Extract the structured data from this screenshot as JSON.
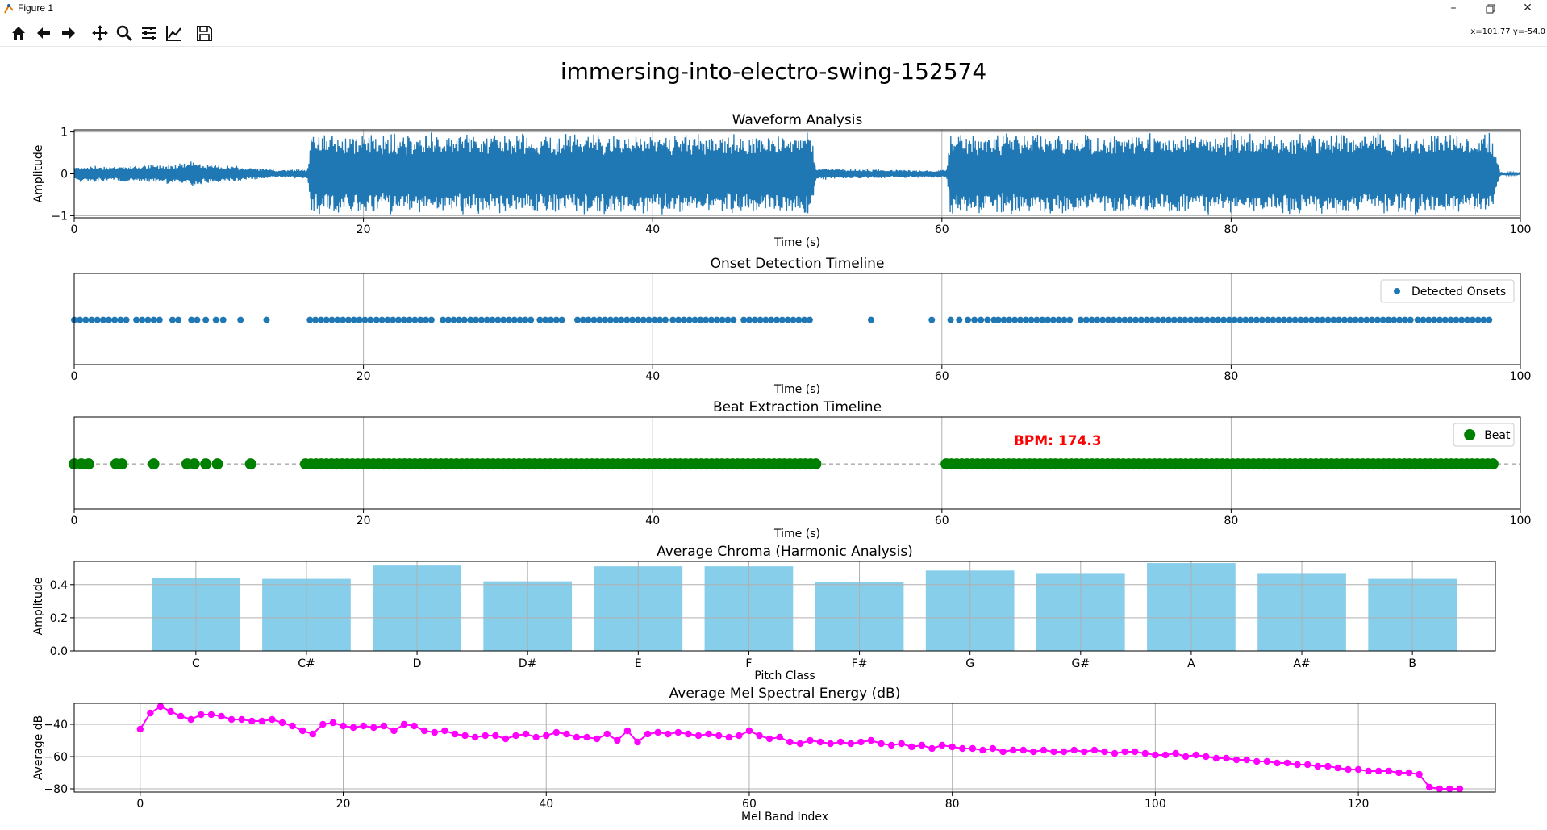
{
  "window": {
    "title": "Figure 1",
    "minimize_icon": "minimize-icon",
    "maximize_icon": "restore-icon",
    "close_icon": "close-icon"
  },
  "toolbar": {
    "buttons": [
      "home-icon",
      "back-arrow-icon",
      "forward-arrow-icon",
      "pan-move-icon",
      "zoom-magnifier-icon",
      "configure-subplots-icon",
      "edit-axis-curve-icon",
      "save-floppy-icon"
    ],
    "coordinates": "x=101.77 y=-54.0"
  },
  "figure": {
    "suptitle": "immersing-into-electro-swing-152574"
  },
  "colors": {
    "waveform": "#1f77b4",
    "onsets": "#1f77b4",
    "beats": "#008000",
    "chroma": "#87ceeb",
    "mel": "#ff00ff",
    "bpm": "#ff0000"
  },
  "chart_data": [
    {
      "type": "line",
      "title": "Waveform Analysis",
      "xlabel": "Time (s)",
      "ylabel": "Amplitude",
      "xlim": [
        0,
        100
      ],
      "ylim": [
        -1.05,
        1.05
      ],
      "xticks": [
        0,
        20,
        40,
        60,
        80,
        100
      ],
      "yticks": [
        1,
        0,
        -1
      ],
      "ytick_labels": [
        "1",
        "0",
        "−1"
      ],
      "grid": true,
      "envelope": {
        "t": [
          0,
          3,
          6,
          8,
          8.5,
          9,
          11,
          14,
          16.1,
          16.4,
          20,
          30,
          40,
          47,
          51,
          51.3,
          54,
          58,
          60.3,
          60.6,
          65,
          80,
          95,
          98,
          98.6,
          100
        ],
        "amp": [
          0.2,
          0.2,
          0.23,
          0.3,
          0.35,
          0.25,
          0.2,
          0.1,
          0.12,
          1,
          1,
          1,
          1,
          0.98,
          1,
          0.15,
          0.12,
          0.1,
          0.1,
          1,
          1,
          1,
          1,
          1,
          0.05,
          0.02
        ]
      }
    },
    {
      "type": "scatter",
      "title": "Onset Detection Timeline",
      "xlabel": "Time (s)",
      "xlim": [
        0,
        100
      ],
      "xticks": [
        0,
        20,
        40,
        60,
        80,
        100
      ],
      "legend": {
        "label": "Detected Onsets",
        "position": "upper right"
      },
      "grid": true,
      "segments": [
        [
          0,
          1.7,
          0.4
        ],
        [
          2,
          3.6,
          0.4
        ],
        [
          4.3,
          5.9,
          0.4
        ],
        [
          16.3,
          20.5,
          0.38
        ],
        [
          20.9,
          25,
          0.38
        ],
        [
          25.5,
          27,
          0.37
        ],
        [
          27.4,
          31.8,
          0.38
        ],
        [
          32.2,
          34,
          0.38
        ],
        [
          34.8,
          41,
          0.38
        ],
        [
          41.4,
          45.6,
          0.38
        ],
        [
          46.3,
          51.2,
          0.38
        ],
        [
          61.8,
          63.6,
          0.45
        ],
        [
          63.9,
          69.1,
          0.38
        ],
        [
          69.6,
          92.6,
          0.38
        ],
        [
          92.9,
          98.2,
          0.38
        ]
      ],
      "points": [
        6.8,
        7.2,
        8.1,
        8.5,
        9.1,
        9.8,
        10.3,
        11.5,
        13.3,
        55.1,
        59.3,
        60.6,
        61.2
      ],
      "y": 0
    },
    {
      "type": "scatter",
      "title": "Beat Extraction Timeline",
      "xlabel": "Time (s)",
      "xlim": [
        0,
        100
      ],
      "xticks": [
        0,
        20,
        40,
        60,
        80,
        100
      ],
      "legend": {
        "label": "Beat",
        "position": "upper right"
      },
      "annotation": "BPM: 174.3",
      "annotation_xy": [
        68,
        0.5
      ],
      "grid": true,
      "segments": [
        [
          0,
          1,
          0.5
        ],
        [
          16,
          51.5,
          0.36
        ],
        [
          60.3,
          98.3,
          0.36
        ]
      ],
      "points": [
        2.9,
        3.3,
        5.5,
        7.8,
        8.3,
        9.1,
        9.9,
        12.2
      ],
      "y": 0
    },
    {
      "type": "bar",
      "title": "Average Chroma (Harmonic Analysis)",
      "xlabel": "Pitch Class",
      "ylabel": "Amplitude",
      "categories": [
        "C",
        "C#",
        "D",
        "D#",
        "E",
        "F",
        "F#",
        "G",
        "G#",
        "A",
        "A#",
        "B"
      ],
      "values": [
        0.44,
        0.435,
        0.515,
        0.42,
        0.51,
        0.51,
        0.415,
        0.485,
        0.465,
        0.53,
        0.465,
        0.435
      ],
      "ylim": [
        0,
        0.54
      ],
      "yticks": [
        0,
        0.2,
        0.4
      ],
      "ytick_labels": [
        "0.0",
        "0.2",
        "0.4"
      ],
      "grid": true
    },
    {
      "type": "line",
      "title": "Average Mel Spectral Energy (dB)",
      "xlabel": "Mel Band Index",
      "ylabel": "Average dB",
      "xlim": [
        -6.5,
        133.5
      ],
      "ylim": [
        -82,
        -27
      ],
      "xticks": [
        0,
        20,
        40,
        60,
        80,
        100,
        120
      ],
      "yticks": [
        -40,
        -60,
        -80
      ],
      "ytick_labels": [
        "−40",
        "−60",
        "−80"
      ],
      "grid": true,
      "values": [
        -43,
        -33,
        -29,
        -32,
        -35,
        -37,
        -34,
        -34,
        -35,
        -37,
        -37,
        -38,
        -38,
        -37,
        -39,
        -41,
        -44,
        -46,
        -40,
        -39,
        -41,
        -42,
        -41,
        -42,
        -41,
        -44,
        -40,
        -41,
        -44,
        -45,
        -44,
        -46,
        -47,
        -48,
        -47,
        -47,
        -49,
        -47,
        -46,
        -48,
        -47,
        -45,
        -46,
        -48,
        -48,
        -49,
        -46,
        -50,
        -44,
        -51,
        -46,
        -45,
        -46,
        -45,
        -46,
        -47,
        -46,
        -47,
        -48,
        -47,
        -44,
        -47,
        -49,
        -48,
        -51,
        -52,
        -50,
        -51,
        -52,
        -51,
        -52,
        -51,
        -50,
        -52,
        -53,
        -52,
        -54,
        -53,
        -55,
        -53,
        -54,
        -55,
        -55,
        -56,
        -55,
        -57,
        -56,
        -56,
        -57,
        -56,
        -57,
        -57,
        -56,
        -57,
        -56,
        -57,
        -58,
        -57,
        -57,
        -58,
        -59,
        -59,
        -58,
        -60,
        -59,
        -60,
        -61,
        -61,
        -62,
        -62,
        -63,
        -63,
        -64,
        -64,
        -65,
        -65,
        -66,
        -66,
        -67,
        -68,
        -68,
        -69,
        -69,
        -69,
        -70,
        -70,
        -71,
        -79,
        -80,
        -80,
        -80
      ]
    }
  ]
}
